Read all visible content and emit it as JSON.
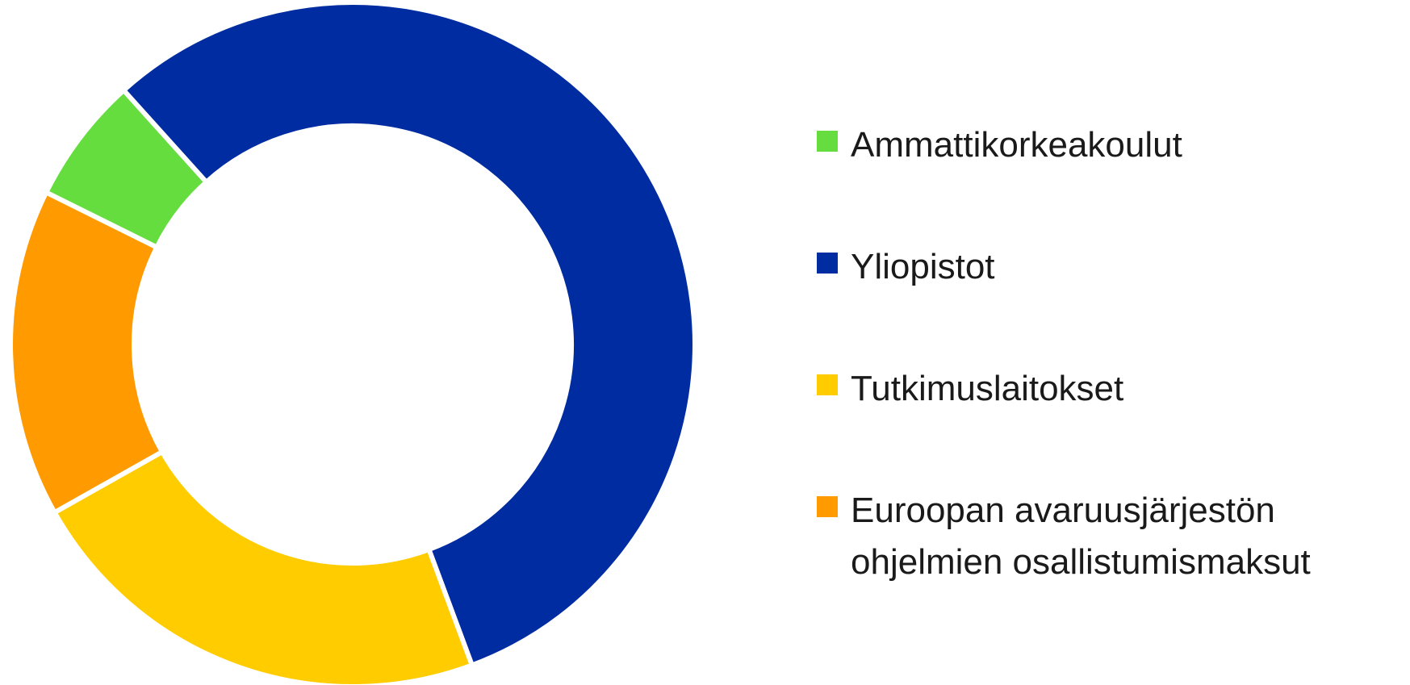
{
  "chart_data": {
    "type": "donut",
    "categories": [
      "Ammattikorkeakoulut",
      "Yliopistot",
      "Tutkimuslaitokset",
      "Euroopan avaruusjärjestön ohjelmien osallistumismaksut"
    ],
    "values": [
      6,
      56,
      22.5,
      15.5
    ],
    "colors": [
      "#66dd3f",
      "#002ca1",
      "#ffcc00",
      "#ff9b00"
    ],
    "legend": "right"
  }
}
